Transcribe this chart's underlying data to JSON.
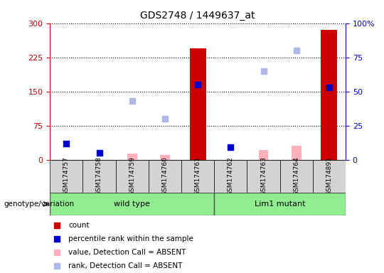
{
  "title": "GDS2748 / 1449637_at",
  "samples": [
    "GSM174757",
    "GSM174758",
    "GSM174759",
    "GSM174760",
    "GSM174761",
    "GSM174762",
    "GSM174763",
    "GSM174764",
    "GSM174891"
  ],
  "count_values": [
    null,
    null,
    null,
    null,
    245,
    null,
    null,
    null,
    285
  ],
  "rank_values": [
    12,
    5,
    null,
    null,
    55,
    9,
    null,
    null,
    53
  ],
  "absent_value_values": [
    null,
    null,
    13,
    10,
    null,
    null,
    22,
    30,
    null
  ],
  "absent_rank_values": [
    null,
    null,
    43,
    30,
    null,
    null,
    65,
    80,
    null
  ],
  "ylim_left": [
    0,
    300
  ],
  "yticks_left": [
    0,
    75,
    150,
    225,
    300
  ],
  "ylim_right": [
    0,
    100
  ],
  "yticks_right": [
    0,
    25,
    50,
    75,
    100
  ],
  "left_axis_color": "#cc0000",
  "right_axis_color": "#0000cc",
  "count_color": "#cc0000",
  "rank_color": "#0000cc",
  "absent_value_color": "#ffb0b8",
  "absent_rank_color": "#b0b8e8",
  "wildtype_label": "wild type",
  "mutant_label": "Lim1 mutant",
  "group_color": "#90EE90",
  "genotype_label": "genotype/variation",
  "legend_items": [
    {
      "color": "#cc0000",
      "label": "count"
    },
    {
      "color": "#0000cc",
      "label": "percentile rank within the sample"
    },
    {
      "color": "#ffb0b8",
      "label": "value, Detection Call = ABSENT"
    },
    {
      "color": "#b0b8e8",
      "label": "rank, Detection Call = ABSENT"
    }
  ]
}
